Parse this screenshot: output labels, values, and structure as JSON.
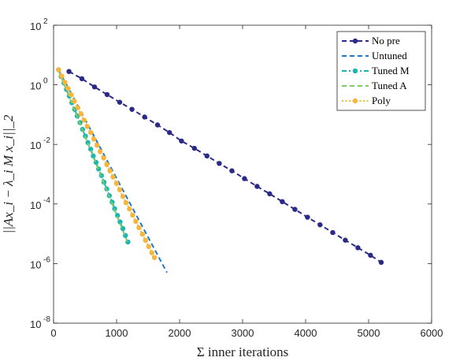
{
  "chart_data": {
    "type": "line",
    "xlabel": "Σ inner iterations",
    "ylabel": "||Ax_i − λ_i M x_i||_2",
    "xlim": [
      0,
      6000
    ],
    "ylim_log10": [
      -8,
      2
    ],
    "y_scale": "log",
    "x_ticks": [
      "0",
      "1000",
      "2000",
      "3000",
      "4000",
      "5000",
      "6000"
    ],
    "y_ticks": [
      {
        "base": "10",
        "exp": "2"
      },
      {
        "base": "10",
        "exp": "0"
      },
      {
        "base": "10",
        "exp": "-2"
      },
      {
        "base": "10",
        "exp": "-4"
      },
      {
        "base": "10",
        "exp": "-6"
      },
      {
        "base": "10",
        "exp": "-8"
      }
    ],
    "grid": false,
    "legend_position": "top-right",
    "series": [
      {
        "name": "No pre",
        "color": "#2b2a86",
        "dash": "dashed",
        "marker": true,
        "x": [
          245,
          450,
          650,
          850,
          1050,
          1245,
          1445,
          1650,
          1840,
          2030,
          2235,
          2435,
          2630,
          2830,
          3030,
          3230,
          3430,
          3630,
          3830,
          4030,
          4230,
          4430,
          4630,
          4830,
          5030,
          5200
        ],
        "y": [
          2.8,
          1.6,
          0.85,
          0.47,
          0.26,
          0.15,
          0.083,
          0.045,
          0.025,
          0.013,
          0.0074,
          0.0041,
          0.0023,
          0.0013,
          0.00071,
          0.00039,
          0.00022,
          0.00012,
          6.6e-05,
          3.6e-05,
          2e-05,
          1.1e-05,
          6.1e-06,
          3.4e-06,
          1.9e-06,
          1.1e-06
        ]
      },
      {
        "name": "Untuned",
        "color": "#1f78c8",
        "dash": "dashed",
        "marker": false,
        "x": [
          80,
          1800
        ],
        "y": [
          3.2,
          5e-07
        ]
      },
      {
        "name": "Tuned M",
        "color": "#1cb5b0",
        "dash": "dashdot",
        "marker": true,
        "x": [
          80,
          120,
          165,
          205,
          250,
          290,
          335,
          375,
          420,
          460,
          505,
          545,
          590,
          630,
          675,
          715,
          760,
          800,
          845,
          885,
          930,
          970,
          1015,
          1055,
          1100,
          1140,
          1180
        ],
        "y": [
          3.2,
          1.9,
          1.15,
          0.7,
          0.42,
          0.25,
          0.15,
          0.09,
          0.054,
          0.032,
          0.019,
          0.0115,
          0.0069,
          0.0041,
          0.0025,
          0.0015,
          0.0009,
          0.00054,
          0.00032,
          0.00019,
          0.000115,
          6.9e-05,
          4.1e-05,
          2.5e-05,
          1.5e-05,
          8.8e-06,
          5.3e-06
        ]
      },
      {
        "name": "Tuned A",
        "color": "#7ccc66",
        "dash": "dashed",
        "marker": false,
        "x": [
          75,
          1170
        ],
        "y": [
          3.2,
          5.5e-06
        ]
      },
      {
        "name": "Poly",
        "color": "#f5b63b",
        "dash": "dotted",
        "marker": true,
        "x": [
          80,
          130,
          180,
          230,
          280,
          330,
          385,
          435,
          485,
          535,
          590,
          640,
          690,
          740,
          795,
          845,
          895,
          945,
          1000,
          1050,
          1100,
          1150,
          1205,
          1255,
          1305,
          1355,
          1410,
          1460,
          1510,
          1560,
          1600
        ],
        "y": [
          3.2,
          1.95,
          1.2,
          0.75,
          0.46,
          0.28,
          0.17,
          0.105,
          0.065,
          0.04,
          0.025,
          0.015,
          0.0093,
          0.0057,
          0.0035,
          0.0021,
          0.0013,
          0.0008,
          0.00049,
          0.0003,
          0.00018,
          0.00011,
          6.8e-05,
          4.2e-05,
          2.6e-05,
          1.6e-05,
          9.7e-06,
          6e-06,
          3.7e-06,
          2.3e-06,
          1.6e-06
        ]
      }
    ]
  }
}
